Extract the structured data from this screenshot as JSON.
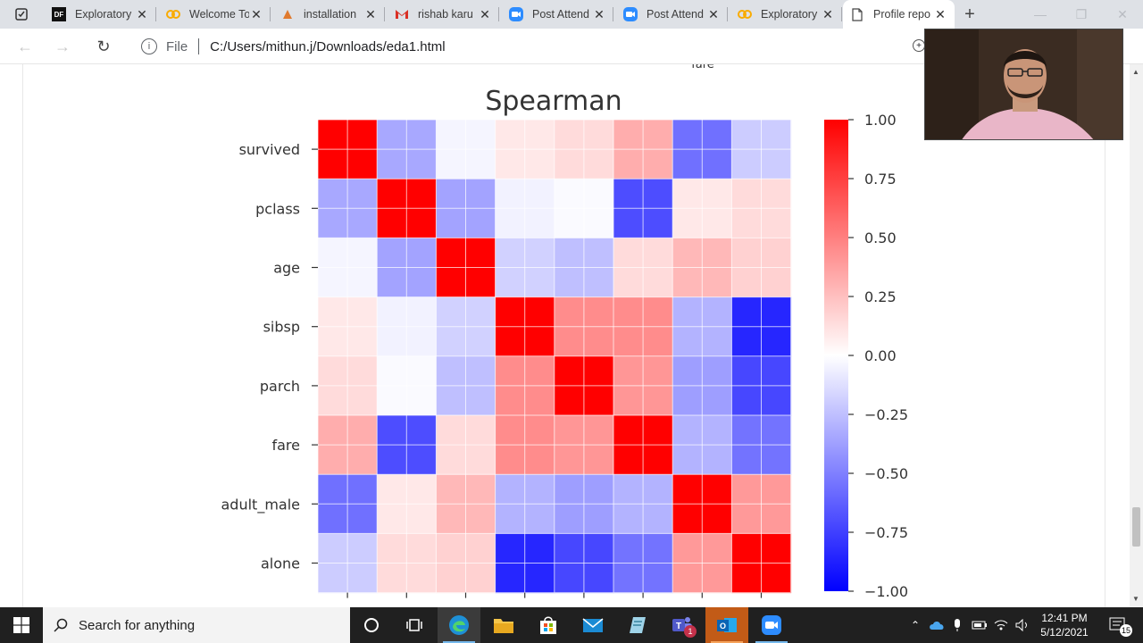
{
  "browser": {
    "tabs": [
      {
        "title": "Exploratory",
        "icon": "df-icon",
        "left": 50,
        "width": 125
      },
      {
        "title": "Welcome To",
        "icon": "colab-icon",
        "left": 178,
        "width": 125
      },
      {
        "title": "installation",
        "icon": "install-icon",
        "left": 306,
        "width": 125
      },
      {
        "title": "rishab karu",
        "icon": "gmail-icon",
        "left": 434,
        "width": 125
      },
      {
        "title": "Post Attend",
        "icon": "zoom-icon",
        "left": 562,
        "width": 125
      },
      {
        "title": "Post Attend",
        "icon": "zoom-icon",
        "left": 690,
        "width": 125
      },
      {
        "title": "Exploratory",
        "icon": "colab-icon",
        "left": 818,
        "width": 125
      },
      {
        "title": "Profile repo",
        "icon": "page-icon",
        "left": 944,
        "width": 125,
        "active": true
      }
    ],
    "address": {
      "scheme_label": "File",
      "url": "C:/Users/mithun.j/Downloads/eda1.html"
    }
  },
  "chart_data": {
    "type": "heatmap",
    "title": "Spearman",
    "top_clipped_label": "fare",
    "variables": [
      "survived",
      "pclass",
      "age",
      "sibsp",
      "parch",
      "fare",
      "adult_male",
      "alone"
    ],
    "matrix": [
      [
        1.0,
        -0.34,
        -0.04,
        0.09,
        0.14,
        0.32,
        -0.56,
        -0.2
      ],
      [
        -0.34,
        1.0,
        -0.36,
        -0.05,
        -0.02,
        -0.7,
        0.09,
        0.14
      ],
      [
        -0.04,
        -0.36,
        1.0,
        -0.18,
        -0.25,
        0.14,
        0.28,
        0.18
      ],
      [
        0.09,
        -0.05,
        -0.18,
        1.0,
        0.45,
        0.45,
        -0.3,
        -0.85
      ],
      [
        0.14,
        -0.02,
        -0.25,
        0.45,
        1.0,
        0.41,
        -0.38,
        -0.72
      ],
      [
        0.32,
        -0.7,
        0.14,
        0.45,
        0.41,
        1.0,
        -0.3,
        -0.55
      ],
      [
        -0.56,
        0.09,
        0.28,
        -0.3,
        -0.38,
        -0.3,
        1.0,
        0.4
      ],
      [
        -0.2,
        0.14,
        0.18,
        -0.85,
        -0.72,
        -0.55,
        0.4,
        1.0
      ]
    ],
    "colorbar": {
      "min": -1.0,
      "max": 1.0,
      "ticks": [
        "1.00",
        "0.75",
        "0.50",
        "0.25",
        "0.00",
        "−0.25",
        "−0.50",
        "−0.75",
        "−1.00"
      ],
      "tick_values": [
        1.0,
        0.75,
        0.5,
        0.25,
        0.0,
        -0.25,
        -0.5,
        -0.75,
        -1.0
      ],
      "colormap": "bwr"
    },
    "grid": true
  },
  "taskbar": {
    "search_placeholder": "Search for anything",
    "apps": [
      "cortana-icon",
      "task-view-icon",
      "edge-icon",
      "file-explorer-icon",
      "store-icon",
      "mail-icon",
      "notes-icon",
      "teams-icon",
      "outlook-icon",
      "zoom-icon"
    ],
    "teams_badge": "1",
    "time": "12:41 PM",
    "date": "5/12/2021",
    "notification_count": "15"
  }
}
